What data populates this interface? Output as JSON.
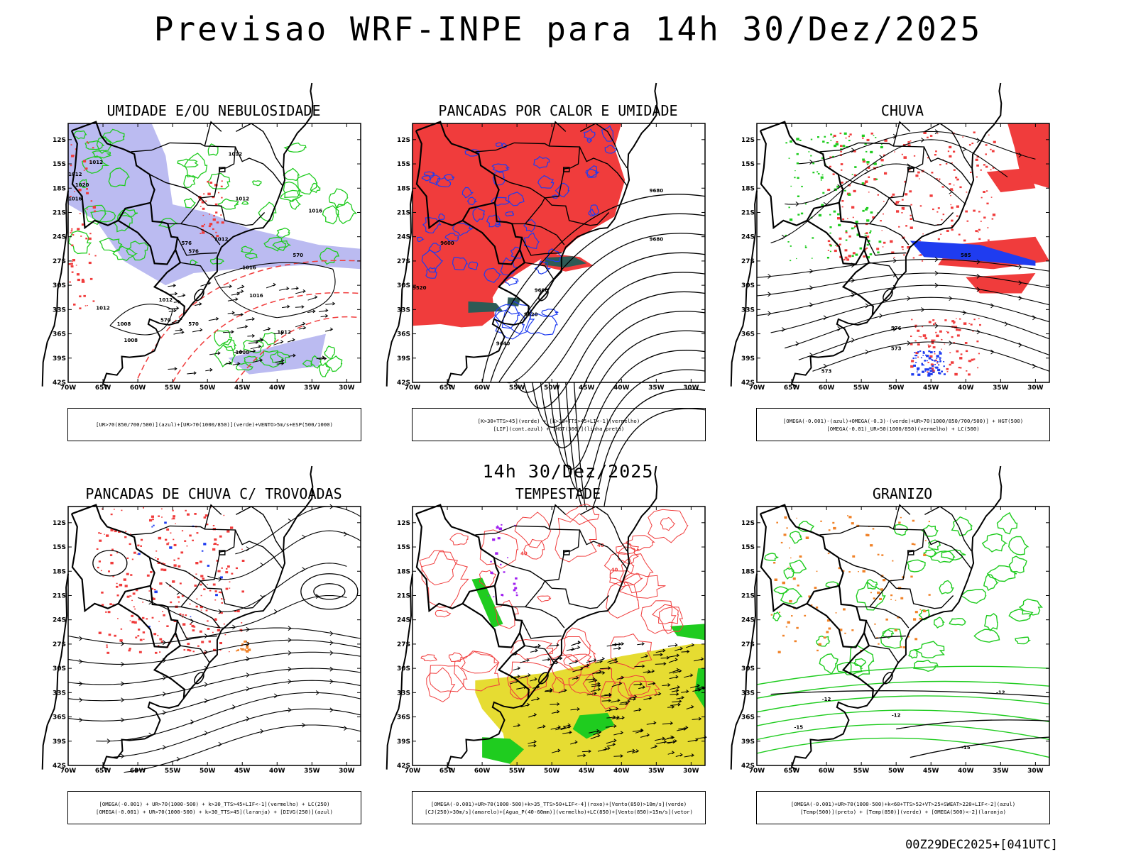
{
  "header": {
    "title": "Previsao WRF-INPE  para 14h 30/Dez/2025",
    "mid_title": "14h 30/Dez/2025",
    "footer": "00Z29DEC2025+[041UTC]"
  },
  "axes": {
    "lat_labels": [
      "12S",
      "15S",
      "18S",
      "21S",
      "24S",
      "27S",
      "30S",
      "33S",
      "36S",
      "39S",
      "42S"
    ],
    "lon_labels": [
      "70W",
      "65W",
      "60W",
      "55W",
      "50W",
      "45W",
      "40W",
      "35W",
      "30W"
    ]
  },
  "colors": {
    "red": "#f03c3c",
    "green": "#1fcc1f",
    "blue": "#1f3cf0",
    "lavender": "#b4b4f0",
    "yellow": "#e6dc32",
    "orange": "#f08228",
    "purple": "#a01ff0",
    "darkteal": "#2e5a55",
    "black": "#000000"
  },
  "panels": [
    {
      "title": "UMIDADE E/OU NEBULOSIDADE",
      "legend": [
        "[UR>70(850/700/500)](azul)+[UR>70(1000/850)](verde)+VENTO>5m/s+ESP(500/1000)"
      ],
      "contour_labels": [
        "1012",
        "1012",
        "1012",
        "1020",
        "1016",
        "1012",
        "1012",
        "1016",
        "576",
        "576",
        "1016",
        "570",
        "1012",
        "1016",
        "1008",
        "1008",
        "570",
        "1012",
        "1008",
        "1012",
        "570"
      ]
    },
    {
      "title": "PANCADAS POR CALOR E UMIDADE",
      "legend": [
        "[K>30+TTS>45](verde) + [K>30+TTS>45+LI<-1](vermelho)",
        "[LIF](cont.azul) + [HGT(300)](linha preta)"
      ],
      "contour_labels": [
        "9680",
        "9680",
        "9600",
        "9520",
        "9600",
        "9520",
        "9440"
      ]
    },
    {
      "title": "CHUVA",
      "legend": [
        "[OMEGA(-0.001)-(azul)+OMEGA(-0.3)-(verde)+UR>70(1000/850/700/500)] + HGT(500)",
        "[OMEGA(-0.01)_UR>50(1000/850)(vermelho) + LC(500)"
      ],
      "contour_labels": [
        "585",
        "576",
        "573",
        "573"
      ]
    },
    {
      "title": "PANCADAS DE CHUVA C/ TROVOADAS",
      "legend": [
        "[OMEGA(-0.001) + UR>70(1000-500) + k>30_TTS>45+LIF<-1](vermelho) + LC(250)",
        "[OMEGA(-0.001) + UR>70(1000-500) + k>30_TTS>45](laranja) + [DIVG(250)](azul)"
      ],
      "contour_labels": []
    },
    {
      "title": "TEMPESTADE",
      "legend": [
        "[OMEGA(-0.001)+UR>70(1000-500)+k>35_TTS>50+LIF<-4](roxo)+[Vento(850)>10m/s](verde)",
        "[CJ(250)>30m/s](amarelo)+[Agua_P(40-60mm)](vermelho)+LC(850)+[Vento(850)>15m/s](vetor)"
      ],
      "contour_labels": [
        "40",
        "40",
        "40"
      ]
    },
    {
      "title": "GRANIZO",
      "legend": [
        "[OMEGA(-0.001)+UR>70(1000-500)+k<60+TTS>52+VT>25+SWEAT>220+LIF<-2](azul)",
        "[Temp(500)](preto) + [Temp(850)](verde) + [OMEGA(500)<-2](laranja)"
      ],
      "contour_labels": [
        "-12",
        "-12",
        "-12",
        "-15",
        "-15"
      ]
    }
  ]
}
